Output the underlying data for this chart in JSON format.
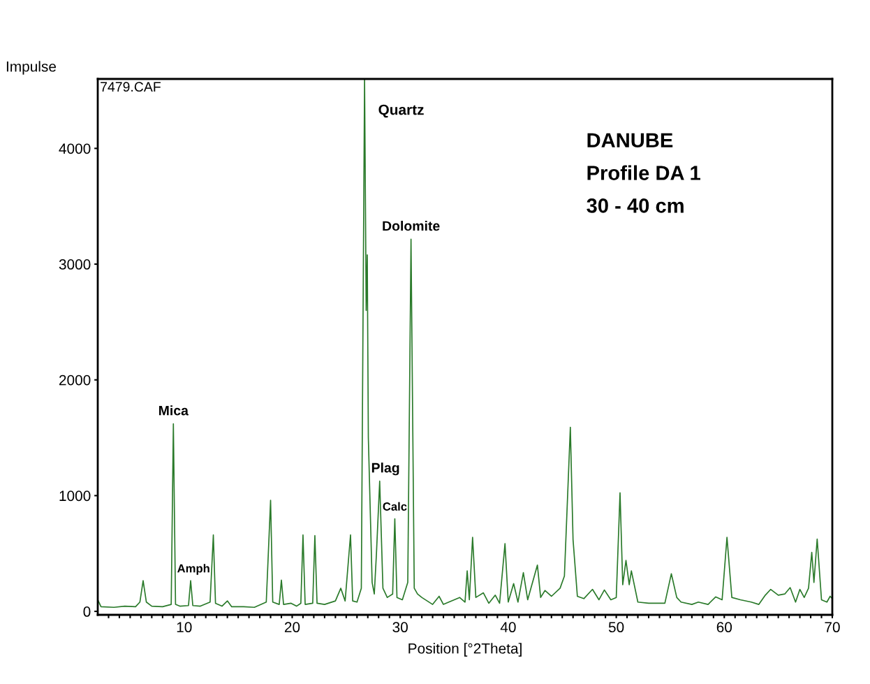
{
  "chart_data": {
    "type": "line",
    "xlabel": "Position [°2Theta]",
    "ylabel": "Impulse",
    "xlim": [
      2,
      70
    ],
    "ylim": [
      -30,
      4600
    ],
    "xticks": [
      {
        "value": 3,
        "label": null
      },
      {
        "value": 4,
        "label": null
      },
      {
        "value": 5,
        "label": null
      },
      {
        "value": 6,
        "label": null
      },
      {
        "value": 7,
        "label": null
      },
      {
        "value": 8,
        "label": null
      },
      {
        "value": 9,
        "label": null
      },
      10,
      {
        "value": 11,
        "label": null
      },
      {
        "value": 12,
        "label": null
      },
      {
        "value": 13,
        "label": null
      },
      {
        "value": 14,
        "label": null
      },
      {
        "value": 15,
        "label": null
      },
      {
        "value": 16,
        "label": null
      },
      {
        "value": 17,
        "label": null
      },
      {
        "value": 18,
        "label": null
      },
      {
        "value": 19,
        "label": null
      },
      20,
      {
        "value": 21,
        "label": null
      },
      {
        "value": 22,
        "label": null
      },
      {
        "value": 23,
        "label": null
      },
      {
        "value": 24,
        "label": null
      },
      {
        "value": 25,
        "label": null
      },
      {
        "value": 26,
        "label": null
      },
      {
        "value": 27,
        "label": null
      },
      {
        "value": 28,
        "label": null
      },
      {
        "value": 29,
        "label": null
      },
      30,
      {
        "value": 31,
        "label": null
      },
      {
        "value": 32,
        "label": null
      },
      {
        "value": 33,
        "label": null
      },
      {
        "value": 34,
        "label": null
      },
      {
        "value": 35,
        "label": null
      },
      {
        "value": 36,
        "label": null
      },
      {
        "value": 37,
        "label": null
      },
      {
        "value": 38,
        "label": null
      },
      {
        "value": 39,
        "label": null
      },
      40,
      {
        "value": 41,
        "label": null
      },
      {
        "value": 42,
        "label": null
      },
      {
        "value": 43,
        "label": null
      },
      {
        "value": 44,
        "label": null
      },
      {
        "value": 45,
        "label": null
      },
      {
        "value": 46,
        "label": null
      },
      {
        "value": 47,
        "label": null
      },
      {
        "value": 48,
        "label": null
      },
      {
        "value": 49,
        "label": null
      },
      50,
      {
        "value": 51,
        "label": null
      },
      {
        "value": 52,
        "label": null
      },
      {
        "value": 53,
        "label": null
      },
      {
        "value": 54,
        "label": null
      },
      {
        "value": 55,
        "label": null
      },
      {
        "value": 56,
        "label": null
      },
      {
        "value": 57,
        "label": null
      },
      {
        "value": 58,
        "label": null
      },
      {
        "value": 59,
        "label": null
      },
      60,
      {
        "value": 61,
        "label": null
      },
      {
        "value": 62,
        "label": null
      },
      {
        "value": 63,
        "label": null
      },
      {
        "value": 64,
        "label": null
      },
      {
        "value": 65,
        "label": null
      },
      {
        "value": 66,
        "label": null
      },
      {
        "value": 67,
        "label": null
      },
      {
        "value": 68,
        "label": null
      },
      {
        "value": 69,
        "label": null
      },
      70
    ],
    "yticks": [
      0,
      1000,
      2000,
      3000,
      4000
    ],
    "grid": false,
    "legend": false,
    "marker": "none",
    "line_style": "solid",
    "series": [
      {
        "color": "#2a7a2a",
        "x": [
          2.0,
          2.3,
          3.5,
          4.5,
          5.5,
          5.9,
          6.2,
          6.5,
          7.0,
          8.0,
          8.8,
          9.0,
          9.2,
          9.6,
          10.4,
          10.6,
          10.8,
          11.5,
          12.4,
          12.7,
          12.9,
          13.5,
          14.0,
          14.4,
          15.5,
          16.5,
          17.6,
          18.0,
          18.2,
          18.8,
          19.0,
          19.2,
          19.9,
          20.4,
          20.8,
          21.0,
          21.2,
          21.9,
          22.1,
          22.3,
          23.0,
          24.0,
          24.5,
          24.9,
          25.4,
          25.6,
          26.0,
          26.4,
          26.7,
          26.85,
          26.95,
          27.05,
          27.4,
          27.6,
          27.8,
          28.1,
          28.4,
          28.8,
          29.3,
          29.5,
          29.7,
          30.2,
          30.7,
          31.0,
          31.3,
          31.6,
          32.0,
          33.0,
          33.6,
          34.0,
          35.0,
          35.5,
          36.0,
          36.2,
          36.4,
          36.7,
          37.0,
          37.7,
          38.2,
          38.8,
          39.2,
          39.7,
          40.0,
          40.5,
          40.9,
          41.4,
          41.8,
          42.7,
          43.0,
          43.4,
          44.0,
          44.8,
          45.2,
          45.75,
          46.0,
          46.4,
          47.0,
          47.8,
          48.4,
          48.9,
          49.5,
          50.0,
          50.35,
          50.6,
          50.9,
          51.2,
          51.4,
          52.0,
          53.0,
          54.5,
          55.1,
          55.6,
          56.0,
          57.0,
          57.6,
          58.5,
          59.2,
          59.8,
          60.25,
          60.7,
          61.5,
          62.5,
          63.2,
          63.8,
          64.3,
          65.0,
          65.6,
          66.1,
          66.6,
          67.0,
          67.4,
          67.8,
          68.1,
          68.3,
          68.6,
          69.0,
          69.5,
          69.8,
          70.0
        ],
        "values": [
          100,
          40,
          35,
          45,
          40,
          80,
          265,
          80,
          45,
          40,
          60,
          1620,
          60,
          45,
          50,
          265,
          50,
          45,
          80,
          660,
          70,
          45,
          90,
          40,
          40,
          35,
          80,
          960,
          80,
          60,
          270,
          60,
          70,
          45,
          70,
          660,
          60,
          70,
          655,
          70,
          60,
          90,
          200,
          90,
          660,
          90,
          80,
          200,
          4600,
          2600,
          3080,
          1500,
          250,
          150,
          500,
          1125,
          200,
          120,
          150,
          800,
          120,
          100,
          250,
          3215,
          200,
          150,
          120,
          60,
          130,
          60,
          100,
          120,
          80,
          350,
          100,
          640,
          120,
          160,
          70,
          140,
          70,
          585,
          80,
          240,
          80,
          335,
          100,
          400,
          120,
          180,
          130,
          200,
          305,
          1590,
          620,
          130,
          110,
          190,
          100,
          185,
          100,
          120,
          1025,
          230,
          440,
          230,
          350,
          80,
          70,
          70,
          325,
          120,
          80,
          60,
          80,
          60,
          125,
          100,
          640,
          120,
          100,
          80,
          60,
          140,
          190,
          140,
          150,
          205,
          80,
          190,
          120,
          200,
          510,
          250,
          625,
          100,
          80,
          130,
          110
        ]
      }
    ],
    "annotations": [
      "7479.CAF",
      "DANUBE",
      "Profile DA 1",
      "30 - 40 cm",
      {
        "text": "Mica",
        "x": 9.0,
        "y": 1620
      },
      {
        "text": "Amph",
        "x": 10.6,
        "y": 265
      },
      {
        "text": "Quartz",
        "x": 26.7,
        "y": 4600
      },
      {
        "text": "Dolomite",
        "x": 31.0,
        "y": 3215
      },
      {
        "text": "Plag",
        "x": 28.1,
        "y": 1125
      },
      {
        "text": "Calc",
        "x": 29.5,
        "y": 800
      }
    ]
  }
}
